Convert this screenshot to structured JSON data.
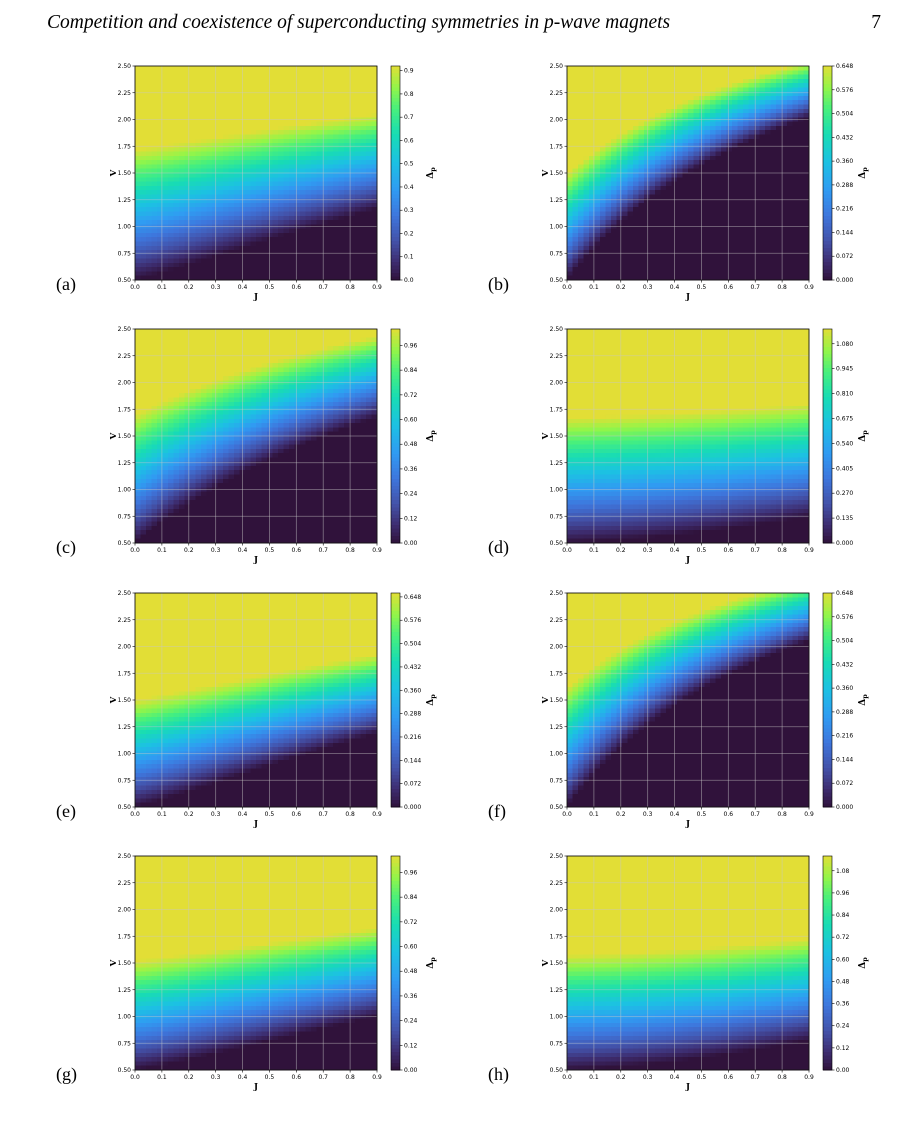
{
  "header": {
    "title": "Competition and coexistence of superconducting symmetries in p-wave magnets",
    "page_number": "7"
  },
  "chart_data": [
    {
      "type": "heatmap",
      "panel_label": "(a)",
      "xlabel": "J",
      "ylabel": "V",
      "colorbar_label": "Δp",
      "xlim": [
        0,
        0.9
      ],
      "ylim": [
        0.5,
        2.5
      ],
      "x_ticks": [
        "0.0",
        "0.1",
        "0.2",
        "0.3",
        "0.4",
        "0.5",
        "0.6",
        "0.7",
        "0.8",
        "0.9"
      ],
      "y_ticks": [
        "0.50",
        "0.75",
        "1.00",
        "1.25",
        "1.50",
        "1.75",
        "2.00",
        "2.25",
        "2.50"
      ],
      "colorbar_ticks": [
        "0.0",
        "0.1",
        "0.2",
        "0.3",
        "0.4",
        "0.5",
        "0.6",
        "0.7",
        "0.8",
        "0.9"
      ],
      "colorbar_range": [
        0,
        0.92
      ],
      "grid": true,
      "x": [
        0,
        0.9
      ],
      "y": [
        0.5,
        2.5
      ],
      "z": [
        [
          0.0,
          0.0
        ],
        [
          0.72,
          0.9
        ]
      ],
      "surface": {
        "base": 0.65,
        "bv": 0.1,
        "jv": 0.3,
        "jamp": 0.4,
        "jpow": 1.4,
        "vpow": 1.2,
        "max": 0.92
      }
    },
    {
      "type": "heatmap",
      "panel_label": "(b)",
      "xlabel": "J",
      "ylabel": "V",
      "colorbar_label": "Δp",
      "xlim": [
        0,
        0.9
      ],
      "ylim": [
        0.5,
        2.5
      ],
      "x_ticks": [
        "0.0",
        "0.1",
        "0.2",
        "0.3",
        "0.4",
        "0.5",
        "0.6",
        "0.7",
        "0.8",
        "0.9"
      ],
      "y_ticks": [
        "0.50",
        "0.75",
        "1.00",
        "1.25",
        "1.50",
        "1.75",
        "2.00",
        "2.25",
        "2.50"
      ],
      "colorbar_ticks": [
        "0.000",
        "0.072",
        "0.144",
        "0.216",
        "0.288",
        "0.360",
        "0.432",
        "0.504",
        "0.576",
        "0.648"
      ],
      "colorbar_range": [
        0,
        0.648
      ],
      "grid": true,
      "x": [
        0,
        0.9
      ],
      "y": [
        0.5,
        2.5
      ],
      "z": [
        [
          0.0,
          0.0
        ],
        [
          0.63,
          0.22
        ]
      ],
      "surface": {
        "base": 0.6,
        "bv": 0.05,
        "jv": 2.1,
        "jamp": 0.0,
        "jpow": 1.0,
        "vpow": 1.1,
        "max": 0.648
      }
    },
    {
      "type": "heatmap",
      "panel_label": "(c)",
      "xlabel": "J",
      "ylabel": "V",
      "colorbar_label": "Δp",
      "xlim": [
        0,
        0.9
      ],
      "ylim": [
        0.5,
        2.5
      ],
      "x_ticks": [
        "0.0",
        "0.1",
        "0.2",
        "0.3",
        "0.4",
        "0.5",
        "0.6",
        "0.7",
        "0.8",
        "0.9"
      ],
      "y_ticks": [
        "0.50",
        "0.75",
        "1.00",
        "1.25",
        "1.50",
        "1.75",
        "2.00",
        "2.25",
        "2.50"
      ],
      "colorbar_ticks": [
        "0.00",
        "0.12",
        "0.24",
        "0.36",
        "0.48",
        "0.60",
        "0.72",
        "0.84",
        "0.96"
      ],
      "colorbar_range": [
        0,
        1.04
      ],
      "grid": true,
      "x": [
        0,
        0.9
      ],
      "y": [
        0.5,
        2.5
      ],
      "z": [
        [
          0.05,
          0.0
        ],
        [
          1.02,
          0.86
        ]
      ],
      "surface": {
        "base": 0.52,
        "bv": 0.35,
        "jv": 1.8,
        "jamp": 0.0,
        "jpow": 1.0,
        "vpow": 1.0,
        "max": 1.04
      }
    },
    {
      "type": "heatmap",
      "panel_label": "(d)",
      "xlabel": "J",
      "ylabel": "V",
      "colorbar_label": "Δp",
      "xlim": [
        0,
        0.9
      ],
      "ylim": [
        0.5,
        2.5
      ],
      "x_ticks": [
        "0.0",
        "0.1",
        "0.2",
        "0.3",
        "0.4",
        "0.5",
        "0.6",
        "0.7",
        "0.8",
        "0.9"
      ],
      "y_ticks": [
        "0.50",
        "0.75",
        "1.00",
        "1.25",
        "1.50",
        "1.75",
        "2.00",
        "2.25",
        "2.50"
      ],
      "colorbar_ticks": [
        "0.000",
        "0.135",
        "0.270",
        "0.405",
        "0.540",
        "0.675",
        "0.810",
        "0.945",
        "1.080"
      ],
      "colorbar_range": [
        0,
        1.16
      ],
      "grid": true,
      "x": [
        0,
        0.9
      ],
      "y": [
        0.5,
        2.5
      ],
      "z": [
        [
          0.02,
          0.05
        ],
        [
          1.06,
          1.06
        ]
      ],
      "surface": {
        "base": 0.57,
        "bv": 0.42,
        "jv": 0.1,
        "jamp": 0.18,
        "jpow": 2.0,
        "vpow": 1.0,
        "max": 1.16
      }
    },
    {
      "type": "heatmap",
      "panel_label": "(e)",
      "xlabel": "J",
      "ylabel": "V",
      "colorbar_label": "Δp",
      "xlim": [
        0,
        0.9
      ],
      "ylim": [
        0.5,
        2.5
      ],
      "x_ticks": [
        "0.0",
        "0.1",
        "0.2",
        "0.3",
        "0.4",
        "0.5",
        "0.6",
        "0.7",
        "0.8",
        "0.9"
      ],
      "y_ticks": [
        "0.50",
        "0.75",
        "1.00",
        "1.25",
        "1.50",
        "1.75",
        "2.00",
        "2.25",
        "2.50"
      ],
      "colorbar_ticks": [
        "0.000",
        "0.072",
        "0.144",
        "0.216",
        "0.288",
        "0.360",
        "0.432",
        "0.504",
        "0.576",
        "0.648"
      ],
      "colorbar_range": [
        0,
        0.66
      ],
      "grid": true,
      "x": [
        0,
        0.9
      ],
      "y": [
        0.5,
        2.5
      ],
      "z": [
        [
          0.02,
          0.0
        ],
        [
          0.64,
          0.64
        ]
      ],
      "surface": {
        "base": 0.36,
        "bv": 0.3,
        "jv": 0.35,
        "jamp": 0.3,
        "jpow": 1.5,
        "vpow": 1.0,
        "max": 0.66
      }
    },
    {
      "type": "heatmap",
      "panel_label": "(f)",
      "xlabel": "J",
      "ylabel": "V",
      "colorbar_label": "Δp",
      "xlim": [
        0,
        0.9
      ],
      "ylim": [
        0.5,
        2.5
      ],
      "x_ticks": [
        "0.0",
        "0.1",
        "0.2",
        "0.3",
        "0.4",
        "0.5",
        "0.6",
        "0.7",
        "0.8",
        "0.9"
      ],
      "y_ticks": [
        "0.50",
        "0.75",
        "1.00",
        "1.25",
        "1.50",
        "1.75",
        "2.00",
        "2.25",
        "2.50"
      ],
      "colorbar_ticks": [
        "0.000",
        "0.072",
        "0.144",
        "0.216",
        "0.288",
        "0.360",
        "0.432",
        "0.504",
        "0.576",
        "0.648"
      ],
      "colorbar_range": [
        0,
        0.648
      ],
      "grid": true,
      "x": [
        0,
        0.9
      ],
      "y": [
        0.5,
        2.5
      ],
      "z": [
        [
          0.0,
          0.0
        ],
        [
          0.62,
          0.2
        ]
      ],
      "surface": {
        "base": 0.56,
        "bv": 0.02,
        "jv": 1.95,
        "jamp": 0.0,
        "jpow": 1.0,
        "vpow": 1.1,
        "max": 0.648
      }
    },
    {
      "type": "heatmap",
      "panel_label": "(g)",
      "xlabel": "J",
      "ylabel": "V",
      "colorbar_label": "Δp",
      "xlim": [
        0,
        0.9
      ],
      "ylim": [
        0.5,
        2.5
      ],
      "x_ticks": [
        "0.0",
        "0.1",
        "0.2",
        "0.3",
        "0.4",
        "0.5",
        "0.6",
        "0.7",
        "0.8",
        "0.9"
      ],
      "y_ticks": [
        "0.50",
        "0.75",
        "1.00",
        "1.25",
        "1.50",
        "1.75",
        "2.00",
        "2.25",
        "2.50"
      ],
      "colorbar_ticks": [
        "0.00",
        "0.12",
        "0.24",
        "0.36",
        "0.48",
        "0.60",
        "0.72",
        "0.84",
        "0.96"
      ],
      "colorbar_range": [
        0,
        1.04
      ],
      "grid": true,
      "x": [
        0,
        0.9
      ],
      "y": [
        0.5,
        2.5
      ],
      "z": [
        [
          0.03,
          0.0
        ],
        [
          1.02,
          1.02
        ]
      ],
      "surface": {
        "base": 0.58,
        "bv": 0.44,
        "jv": 0.35,
        "jamp": 0.32,
        "jpow": 1.5,
        "vpow": 1.0,
        "max": 1.04
      }
    },
    {
      "type": "heatmap",
      "panel_label": "(h)",
      "xlabel": "J",
      "ylabel": "V",
      "colorbar_label": "Δp",
      "xlim": [
        0,
        0.9
      ],
      "ylim": [
        0.5,
        2.5
      ],
      "x_ticks": [
        "0.0",
        "0.1",
        "0.2",
        "0.3",
        "0.4",
        "0.5",
        "0.6",
        "0.7",
        "0.8",
        "0.9"
      ],
      "y_ticks": [
        "0.50",
        "0.75",
        "1.00",
        "1.25",
        "1.50",
        "1.75",
        "2.00",
        "2.25",
        "2.50"
      ],
      "colorbar_ticks": [
        "0.00",
        "0.12",
        "0.24",
        "0.36",
        "0.48",
        "0.60",
        "0.72",
        "0.84",
        "0.96",
        "1.08"
      ],
      "colorbar_range": [
        0,
        1.16
      ],
      "grid": true,
      "x": [
        0,
        0.9
      ],
      "y": [
        0.5,
        2.5
      ],
      "z": [
        [
          0.03,
          0.02
        ],
        [
          1.1,
          1.1
        ]
      ],
      "surface": {
        "base": 0.6,
        "bv": 0.48,
        "jv": 0.1,
        "jamp": 0.25,
        "jpow": 2.0,
        "vpow": 1.0,
        "max": 1.16
      }
    }
  ]
}
